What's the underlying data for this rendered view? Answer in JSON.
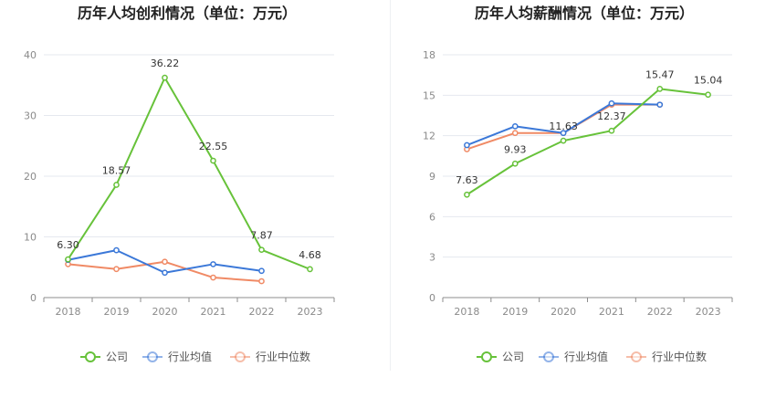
{
  "colors": {
    "company": "#67c23a",
    "industry_avg": "#3b78d8",
    "industry_median": "#f08a65",
    "grid": "#e5e8ef",
    "axis": "#8c8c8c"
  },
  "legend": {
    "company": "公司",
    "industry_avg": "行业均值",
    "industry_median": "行业中位数"
  },
  "chart_data": [
    {
      "type": "line",
      "title": "历年人均创利情况（单位：万元）",
      "categories": [
        "2018",
        "2019",
        "2020",
        "2021",
        "2022",
        "2023"
      ],
      "ylim": [
        0,
        40
      ],
      "yticks": [
        0,
        10,
        20,
        30,
        40
      ],
      "grid": true,
      "legend_position": "bottom",
      "series": [
        {
          "name": "公司",
          "key": "company",
          "values": [
            6.3,
            18.57,
            36.22,
            22.55,
            7.87,
            4.68
          ],
          "labels": [
            "6.30",
            "18.57",
            "36.22",
            "22.55",
            "7.87",
            "4.68"
          ]
        },
        {
          "name": "行业均值",
          "key": "industry_avg",
          "values": [
            6.2,
            7.8,
            4.1,
            5.5,
            4.4,
            null
          ]
        },
        {
          "name": "行业中位数",
          "key": "industry_median",
          "values": [
            5.5,
            4.7,
            5.9,
            3.3,
            2.7,
            null
          ]
        }
      ]
    },
    {
      "type": "line",
      "title": "历年人均薪酬情况（单位：万元）",
      "categories": [
        "2018",
        "2019",
        "2020",
        "2021",
        "2022",
        "2023"
      ],
      "ylim": [
        0,
        18
      ],
      "yticks": [
        0,
        3,
        6,
        9,
        12,
        15,
        18
      ],
      "grid": true,
      "legend_position": "bottom",
      "series": [
        {
          "name": "公司",
          "key": "company",
          "values": [
            7.63,
            9.93,
            11.63,
            12.37,
            15.47,
            15.04
          ],
          "labels": [
            "7.63",
            "9.93",
            "11.63",
            "12.37",
            "15.47",
            "15.04"
          ]
        },
        {
          "name": "行业均值",
          "key": "industry_avg",
          "values": [
            11.3,
            12.7,
            12.2,
            14.4,
            14.3,
            null
          ]
        },
        {
          "name": "行业中位数",
          "key": "industry_median",
          "values": [
            11.0,
            12.2,
            12.2,
            14.3,
            14.3,
            null
          ]
        }
      ]
    }
  ]
}
